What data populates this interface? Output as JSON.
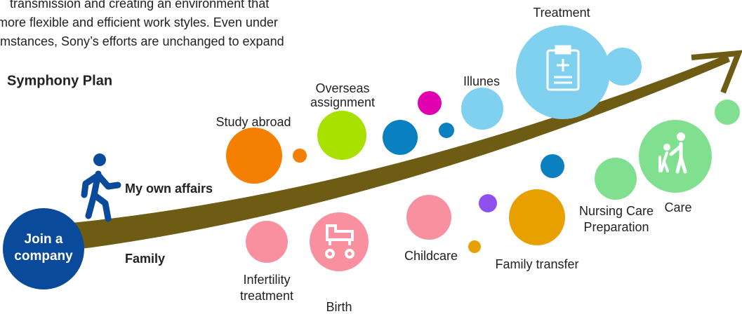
{
  "intro": [
    "transmission and creating an environment that",
    "more flexible and efficient work styles. Even under",
    "mstances, Sony’s efforts are unchanged to expand"
  ],
  "title": "Symphony Plan",
  "start": [
    "Join a",
    "company"
  ],
  "tracks": {
    "own": "My own affairs",
    "family": "Family"
  },
  "own_events": {
    "study_abroad": "Study abroad",
    "overseas": [
      "Overseas",
      "assignment"
    ],
    "illness": "Illunes",
    "treatment": "Treatment"
  },
  "family_events": {
    "infertility": [
      "Infertility",
      "treatment"
    ],
    "birth": "Birth",
    "childcare": "Childcare",
    "family_transfer": "Family transfer",
    "nursing_prep": [
      "Nursing Care",
      "Preparation"
    ],
    "care": "Care"
  }
}
